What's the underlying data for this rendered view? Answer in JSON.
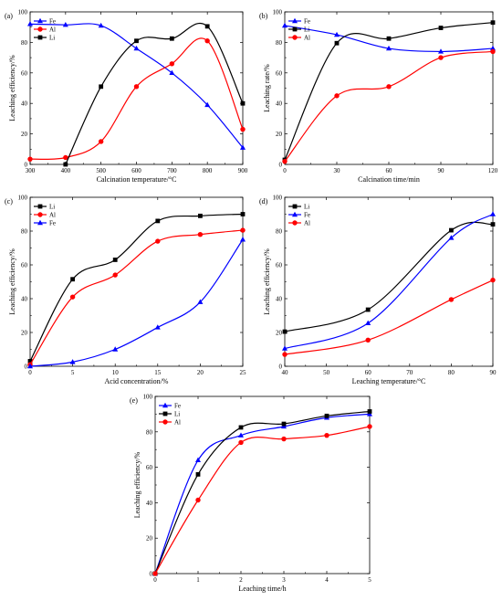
{
  "chart_data": [
    {
      "panel": "(a)",
      "type": "line",
      "xlabel": "Calcination temperature/°C",
      "ylabel": "Leaching efficiency/%",
      "xlim": [
        300,
        900
      ],
      "ylim": [
        0,
        100
      ],
      "xticks": [
        300,
        400,
        500,
        600,
        700,
        800,
        900
      ],
      "yticks": [
        0,
        20,
        40,
        60,
        80,
        100
      ],
      "legend_position": "top-left",
      "grid": false,
      "x": [
        300,
        400,
        500,
        600,
        700,
        800,
        900
      ],
      "series": [
        {
          "name": "Fe",
          "marker": "triangle",
          "color": "#0000ff",
          "values": [
            92,
            91.5,
            91,
            76,
            60,
            39,
            11
          ]
        },
        {
          "name": "Al",
          "marker": "circle",
          "color": "#ff0000",
          "values": [
            3.5,
            4.5,
            15,
            51,
            66,
            81,
            23
          ]
        },
        {
          "name": "Li",
          "marker": "square",
          "color": "#000000",
          "values": [
            null,
            0,
            51,
            81,
            82.5,
            90.5,
            40
          ]
        }
      ]
    },
    {
      "panel": "(b)",
      "type": "line",
      "xlabel": "Calcination time/min",
      "ylabel": "Leaching rate/%",
      "xlim": [
        0,
        120
      ],
      "ylim": [
        0,
        100
      ],
      "xticks": [
        0,
        30,
        60,
        90,
        120
      ],
      "yticks": [
        0,
        20,
        40,
        60,
        80,
        100
      ],
      "legend_position": "top-left",
      "grid": false,
      "x": [
        0,
        30,
        60,
        90,
        120
      ],
      "series": [
        {
          "name": "Fe",
          "marker": "triangle",
          "color": "#0000ff",
          "values": [
            91,
            85,
            76,
            74,
            76
          ]
        },
        {
          "name": "Li",
          "marker": "square",
          "color": "#000000",
          "values": [
            3,
            79.5,
            82.5,
            89.5,
            93
          ]
        },
        {
          "name": "Al",
          "marker": "circle",
          "color": "#ff0000",
          "values": [
            2,
            45,
            51,
            70,
            74
          ]
        }
      ]
    },
    {
      "panel": "(c)",
      "type": "line",
      "xlabel": "Acid concentration/%",
      "ylabel": "Leaching efficiency/%",
      "xlim": [
        0,
        25
      ],
      "ylim": [
        0,
        100
      ],
      "xticks": [
        0,
        5,
        10,
        15,
        20,
        25
      ],
      "yticks": [
        0,
        20,
        40,
        60,
        80,
        100
      ],
      "legend_position": "top-left",
      "grid": false,
      "x": [
        0,
        5,
        10,
        15,
        20,
        25
      ],
      "series": [
        {
          "name": "Li",
          "marker": "square",
          "color": "#000000",
          "values": [
            3,
            51.5,
            63,
            86,
            89,
            90
          ]
        },
        {
          "name": "Al",
          "marker": "circle",
          "color": "#ff0000",
          "values": [
            1,
            41,
            54,
            74,
            78,
            80.5
          ]
        },
        {
          "name": "Fe",
          "marker": "triangle",
          "color": "#0000ff",
          "values": [
            0,
            2.5,
            10,
            23,
            38,
            75
          ]
        }
      ]
    },
    {
      "panel": "(d)",
      "type": "line",
      "xlabel": "Leaching  temperature/°C",
      "ylabel": "Leaching efficiency/%",
      "xlim": [
        40,
        90
      ],
      "ylim": [
        0,
        100
      ],
      "xticks": [
        40,
        50,
        60,
        70,
        80,
        90
      ],
      "yticks": [
        0,
        20,
        40,
        60,
        80,
        100
      ],
      "legend_position": "top-left",
      "grid": false,
      "x": [
        40,
        60,
        80,
        90
      ],
      "series": [
        {
          "name": "Li",
          "marker": "square",
          "color": "#000000",
          "values": [
            20.5,
            33.5,
            80.5,
            84
          ]
        },
        {
          "name": "Fe",
          "marker": "triangle",
          "color": "#0000ff",
          "values": [
            10.5,
            25.5,
            76,
            90
          ]
        },
        {
          "name": "Al",
          "marker": "circle",
          "color": "#ff0000",
          "values": [
            7,
            15.5,
            39.5,
            51
          ]
        }
      ]
    },
    {
      "panel": "(e)",
      "type": "line",
      "xlabel": "Leaching time/h",
      "ylabel": "Leaching efficiency/%",
      "xlim": [
        0,
        5
      ],
      "ylim": [
        0,
        100
      ],
      "xticks": [
        0,
        1,
        2,
        3,
        4,
        5
      ],
      "yticks": [
        0,
        20,
        40,
        60,
        80,
        100
      ],
      "legend_position": "top-left",
      "grid": false,
      "x": [
        0,
        1,
        2,
        3,
        4,
        5
      ],
      "series": [
        {
          "name": "Fe",
          "marker": "triangle",
          "color": "#0000ff",
          "values": [
            0,
            64,
            78,
            83,
            88,
            90
          ]
        },
        {
          "name": "Li",
          "marker": "square",
          "color": "#000000",
          "values": [
            0,
            56,
            82.5,
            84.5,
            89,
            91.5
          ]
        },
        {
          "name": "Al",
          "marker": "circle",
          "color": "#ff0000",
          "values": [
            0,
            41.5,
            74,
            76,
            78,
            83
          ]
        }
      ]
    }
  ]
}
